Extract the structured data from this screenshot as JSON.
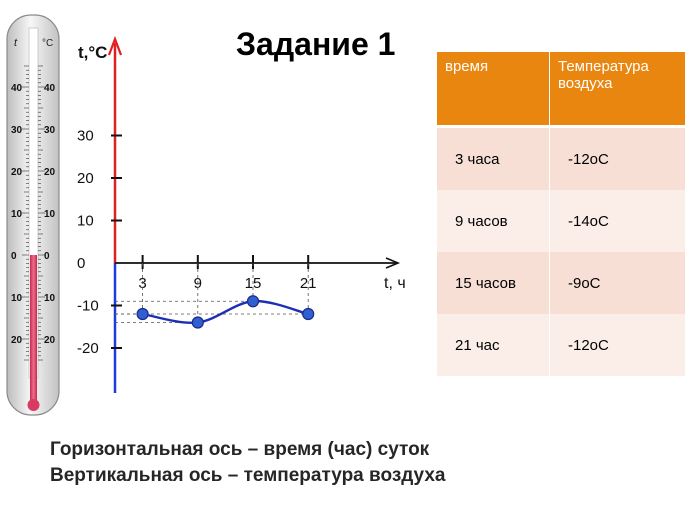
{
  "slide": {
    "title": "Задание 1",
    "caption_line1": "Горизонтальная ось – время (час) суток",
    "caption_line2": "Вертикальная ось – температура воздуха"
  },
  "thermometer": {
    "unit_left": "t",
    "unit_right": "°C",
    "labels_upper": [
      "40",
      "30",
      "20",
      "10",
      "0"
    ],
    "labels_lower": [
      "10",
      "20"
    ],
    "colors": {
      "mercury": "#e6436a",
      "body": "#e4e4e4",
      "frame": "#8a8a8a"
    }
  },
  "table": {
    "headers": [
      "время",
      "Температура воздуха"
    ],
    "rows": [
      [
        "3 часа",
        "-12oC"
      ],
      [
        "9 часов",
        "-14oC"
      ],
      [
        "15 часов",
        "-9oC"
      ],
      [
        "21 час",
        "-12oC"
      ]
    ],
    "colors": {
      "header": "#e9860f",
      "row_a": "#f7dfd6",
      "row_b": "#fbeee9"
    }
  },
  "chart_data": {
    "type": "line",
    "x": [
      3,
      9,
      15,
      21
    ],
    "y": [
      -12,
      -14,
      -9,
      -12
    ],
    "ylabel": "t,°C",
    "xlabel": "t, ч",
    "y_ticks": [
      30,
      20,
      10,
      0,
      -10,
      -20
    ],
    "x_ticks": [
      3,
      9,
      15,
      21
    ],
    "xlim": [
      -3.5,
      25
    ],
    "ylim": [
      -25,
      50
    ],
    "colors": {
      "y_positive": "#e02020",
      "y_negative": "#1f3be0",
      "line": "#1e2fb5",
      "points": "#2f5fd0"
    }
  }
}
